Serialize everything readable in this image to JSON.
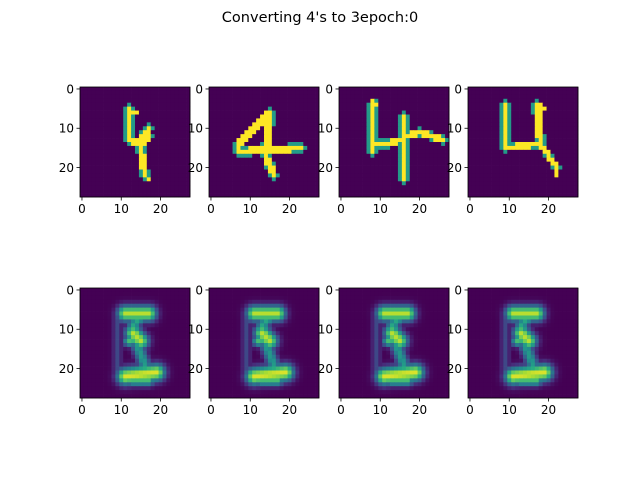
{
  "chart_data": {
    "type": "heatmap",
    "title": "Converting 4's to 3epoch:0",
    "layout": {
      "rows": 2,
      "cols": 4
    },
    "image_size": [
      28,
      28
    ],
    "colormap": "viridis",
    "value_range": [
      0,
      1
    ],
    "x_ticks": [
      0,
      10,
      20
    ],
    "x_tick_labels": [
      "0",
      "10",
      "20"
    ],
    "y_ticks": [
      0,
      10,
      20
    ],
    "y_tick_labels": [
      "0",
      "10",
      "20"
    ],
    "panels": [
      {
        "kind": "input-digit-4",
        "strokes": [
          {
            "from": [
              12,
              5
            ],
            "to": [
              12,
              13
            ],
            "w": 1.2,
            "v": 1
          },
          {
            "from": [
              13,
              6
            ],
            "to": [
              14,
              6
            ],
            "w": 0.8,
            "v": 1
          },
          {
            "from": [
              12,
              13
            ],
            "to": [
              14,
              14
            ],
            "w": 1.1,
            "v": 1
          },
          {
            "from": [
              14,
              14
            ],
            "to": [
              17,
              10
            ],
            "w": 1.0,
            "v": 1
          },
          {
            "from": [
              17,
              10
            ],
            "to": [
              17,
              12
            ],
            "w": 0.9,
            "v": 1
          },
          {
            "from": [
              17,
              12
            ],
            "to": [
              15,
              15
            ],
            "w": 1.0,
            "v": 1
          },
          {
            "from": [
              15,
              15
            ],
            "to": [
              16,
              22
            ],
            "w": 1.1,
            "v": 1
          },
          {
            "from": [
              16,
              22
            ],
            "to": [
              17,
              23
            ],
            "w": 0.9,
            "v": 1
          }
        ]
      },
      {
        "kind": "input-digit-4",
        "strokes": [
          {
            "from": [
              15,
              6
            ],
            "to": [
              7,
              14
            ],
            "w": 1.2,
            "v": 1
          },
          {
            "from": [
              7,
              14
            ],
            "to": [
              7,
              16
            ],
            "w": 1.1,
            "v": 1
          },
          {
            "from": [
              7,
              16
            ],
            "to": [
              23,
              15
            ],
            "w": 1.1,
            "v": 1
          },
          {
            "from": [
              15,
              6
            ],
            "to": [
              14,
              17
            ],
            "w": 1.2,
            "v": 1
          },
          {
            "from": [
              14,
              17
            ],
            "to": [
              16,
              22
            ],
            "w": 1.1,
            "v": 1
          }
        ]
      },
      {
        "kind": "input-digit-4",
        "strokes": [
          {
            "from": [
              8,
              3
            ],
            "to": [
              9,
              4
            ],
            "w": 0.8,
            "v": 1
          },
          {
            "from": [
              8,
              4
            ],
            "to": [
              8,
              16
            ],
            "w": 1.2,
            "v": 1
          },
          {
            "from": [
              8,
              14
            ],
            "to": [
              12,
              14
            ],
            "w": 1.0,
            "v": 1
          },
          {
            "from": [
              12,
              14
            ],
            "to": [
              20,
              11
            ],
            "w": 1.0,
            "v": 1
          },
          {
            "from": [
              20,
              11
            ],
            "to": [
              26,
              13
            ],
            "w": 1.0,
            "v": 1
          },
          {
            "from": [
              16,
              7
            ],
            "to": [
              16,
              23
            ],
            "w": 1.1,
            "v": 1
          }
        ]
      },
      {
        "kind": "input-digit-4",
        "strokes": [
          {
            "from": [
              9,
              4
            ],
            "to": [
              9,
              15
            ],
            "w": 1.1,
            "v": 1
          },
          {
            "from": [
              9,
              15
            ],
            "to": [
              18,
              14
            ],
            "w": 1.0,
            "v": 1
          },
          {
            "from": [
              18,
              14
            ],
            "to": [
              22,
              20
            ],
            "w": 1.0,
            "v": 1
          },
          {
            "from": [
              17,
              4
            ],
            "to": [
              18,
              14
            ],
            "w": 1.1,
            "v": 1
          },
          {
            "from": [
              17,
              4
            ],
            "to": [
              19,
              5
            ],
            "w": 0.8,
            "v": 1
          },
          {
            "from": [
              22,
              20
            ],
            "to": [
              22,
              22
            ],
            "w": 0.8,
            "v": 1
          }
        ]
      },
      {
        "kind": "generated-digit",
        "strokes": [
          {
            "from": [
              11,
              6
            ],
            "to": [
              17,
              6
            ],
            "w": 1.4,
            "v": 0.9
          },
          {
            "from": [
              15,
              7
            ],
            "to": [
              13,
              9
            ],
            "w": 1.0,
            "v": 0.6
          },
          {
            "from": [
              13,
              11
            ],
            "to": [
              15,
              13
            ],
            "w": 1.4,
            "v": 0.9
          },
          {
            "from": [
              12,
              13
            ],
            "to": [
              15,
              12
            ],
            "w": 1.0,
            "v": 0.7
          },
          {
            "from": [
              14,
              14
            ],
            "to": [
              16,
              19
            ],
            "w": 1.1,
            "v": 0.55
          },
          {
            "from": [
              11,
              22
            ],
            "to": [
              19,
              21
            ],
            "w": 1.5,
            "v": 0.95
          },
          {
            "from": [
              13,
              23
            ],
            "to": [
              17,
              23
            ],
            "w": 1.0,
            "v": 0.7
          },
          {
            "from": [
              9,
              6
            ],
            "to": [
              9,
              22
            ],
            "w": 0.8,
            "v": 0.22
          }
        ]
      },
      {
        "kind": "generated-digit",
        "strokes": [
          {
            "from": [
              11,
              6
            ],
            "to": [
              17,
              6
            ],
            "w": 1.4,
            "v": 0.9
          },
          {
            "from": [
              15,
              7
            ],
            "to": [
              13,
              9
            ],
            "w": 1.0,
            "v": 0.6
          },
          {
            "from": [
              13,
              11
            ],
            "to": [
              15,
              13
            ],
            "w": 1.4,
            "v": 0.9
          },
          {
            "from": [
              12,
              13
            ],
            "to": [
              15,
              12
            ],
            "w": 1.0,
            "v": 0.7
          },
          {
            "from": [
              14,
              14
            ],
            "to": [
              16,
              19
            ],
            "w": 1.1,
            "v": 0.55
          },
          {
            "from": [
              11,
              22
            ],
            "to": [
              19,
              21
            ],
            "w": 1.5,
            "v": 0.95
          },
          {
            "from": [
              13,
              23
            ],
            "to": [
              17,
              23
            ],
            "w": 1.0,
            "v": 0.7
          },
          {
            "from": [
              9,
              6
            ],
            "to": [
              9,
              22
            ],
            "w": 0.8,
            "v": 0.22
          }
        ]
      },
      {
        "kind": "generated-digit",
        "strokes": [
          {
            "from": [
              11,
              6
            ],
            "to": [
              17,
              6
            ],
            "w": 1.4,
            "v": 0.9
          },
          {
            "from": [
              15,
              7
            ],
            "to": [
              13,
              9
            ],
            "w": 1.0,
            "v": 0.6
          },
          {
            "from": [
              13,
              11
            ],
            "to": [
              15,
              13
            ],
            "w": 1.4,
            "v": 0.9
          },
          {
            "from": [
              12,
              13
            ],
            "to": [
              15,
              12
            ],
            "w": 1.0,
            "v": 0.7
          },
          {
            "from": [
              14,
              14
            ],
            "to": [
              16,
              19
            ],
            "w": 1.1,
            "v": 0.55
          },
          {
            "from": [
              11,
              22
            ],
            "to": [
              19,
              21
            ],
            "w": 1.5,
            "v": 0.95
          },
          {
            "from": [
              13,
              23
            ],
            "to": [
              17,
              23
            ],
            "w": 1.0,
            "v": 0.7
          },
          {
            "from": [
              9,
              6
            ],
            "to": [
              9,
              22
            ],
            "w": 0.8,
            "v": 0.22
          }
        ]
      },
      {
        "kind": "generated-digit",
        "strokes": [
          {
            "from": [
              11,
              6
            ],
            "to": [
              17,
              6
            ],
            "w": 1.4,
            "v": 0.9
          },
          {
            "from": [
              15,
              7
            ],
            "to": [
              13,
              9
            ],
            "w": 1.0,
            "v": 0.6
          },
          {
            "from": [
              13,
              11
            ],
            "to": [
              15,
              13
            ],
            "w": 1.4,
            "v": 0.9
          },
          {
            "from": [
              12,
              13
            ],
            "to": [
              15,
              12
            ],
            "w": 1.0,
            "v": 0.7
          },
          {
            "from": [
              14,
              14
            ],
            "to": [
              16,
              19
            ],
            "w": 1.1,
            "v": 0.55
          },
          {
            "from": [
              11,
              22
            ],
            "to": [
              19,
              21
            ],
            "w": 1.5,
            "v": 0.95
          },
          {
            "from": [
              13,
              23
            ],
            "to": [
              17,
              23
            ],
            "w": 1.0,
            "v": 0.7
          },
          {
            "from": [
              9,
              6
            ],
            "to": [
              9,
              22
            ],
            "w": 0.8,
            "v": 0.22
          }
        ]
      }
    ]
  }
}
